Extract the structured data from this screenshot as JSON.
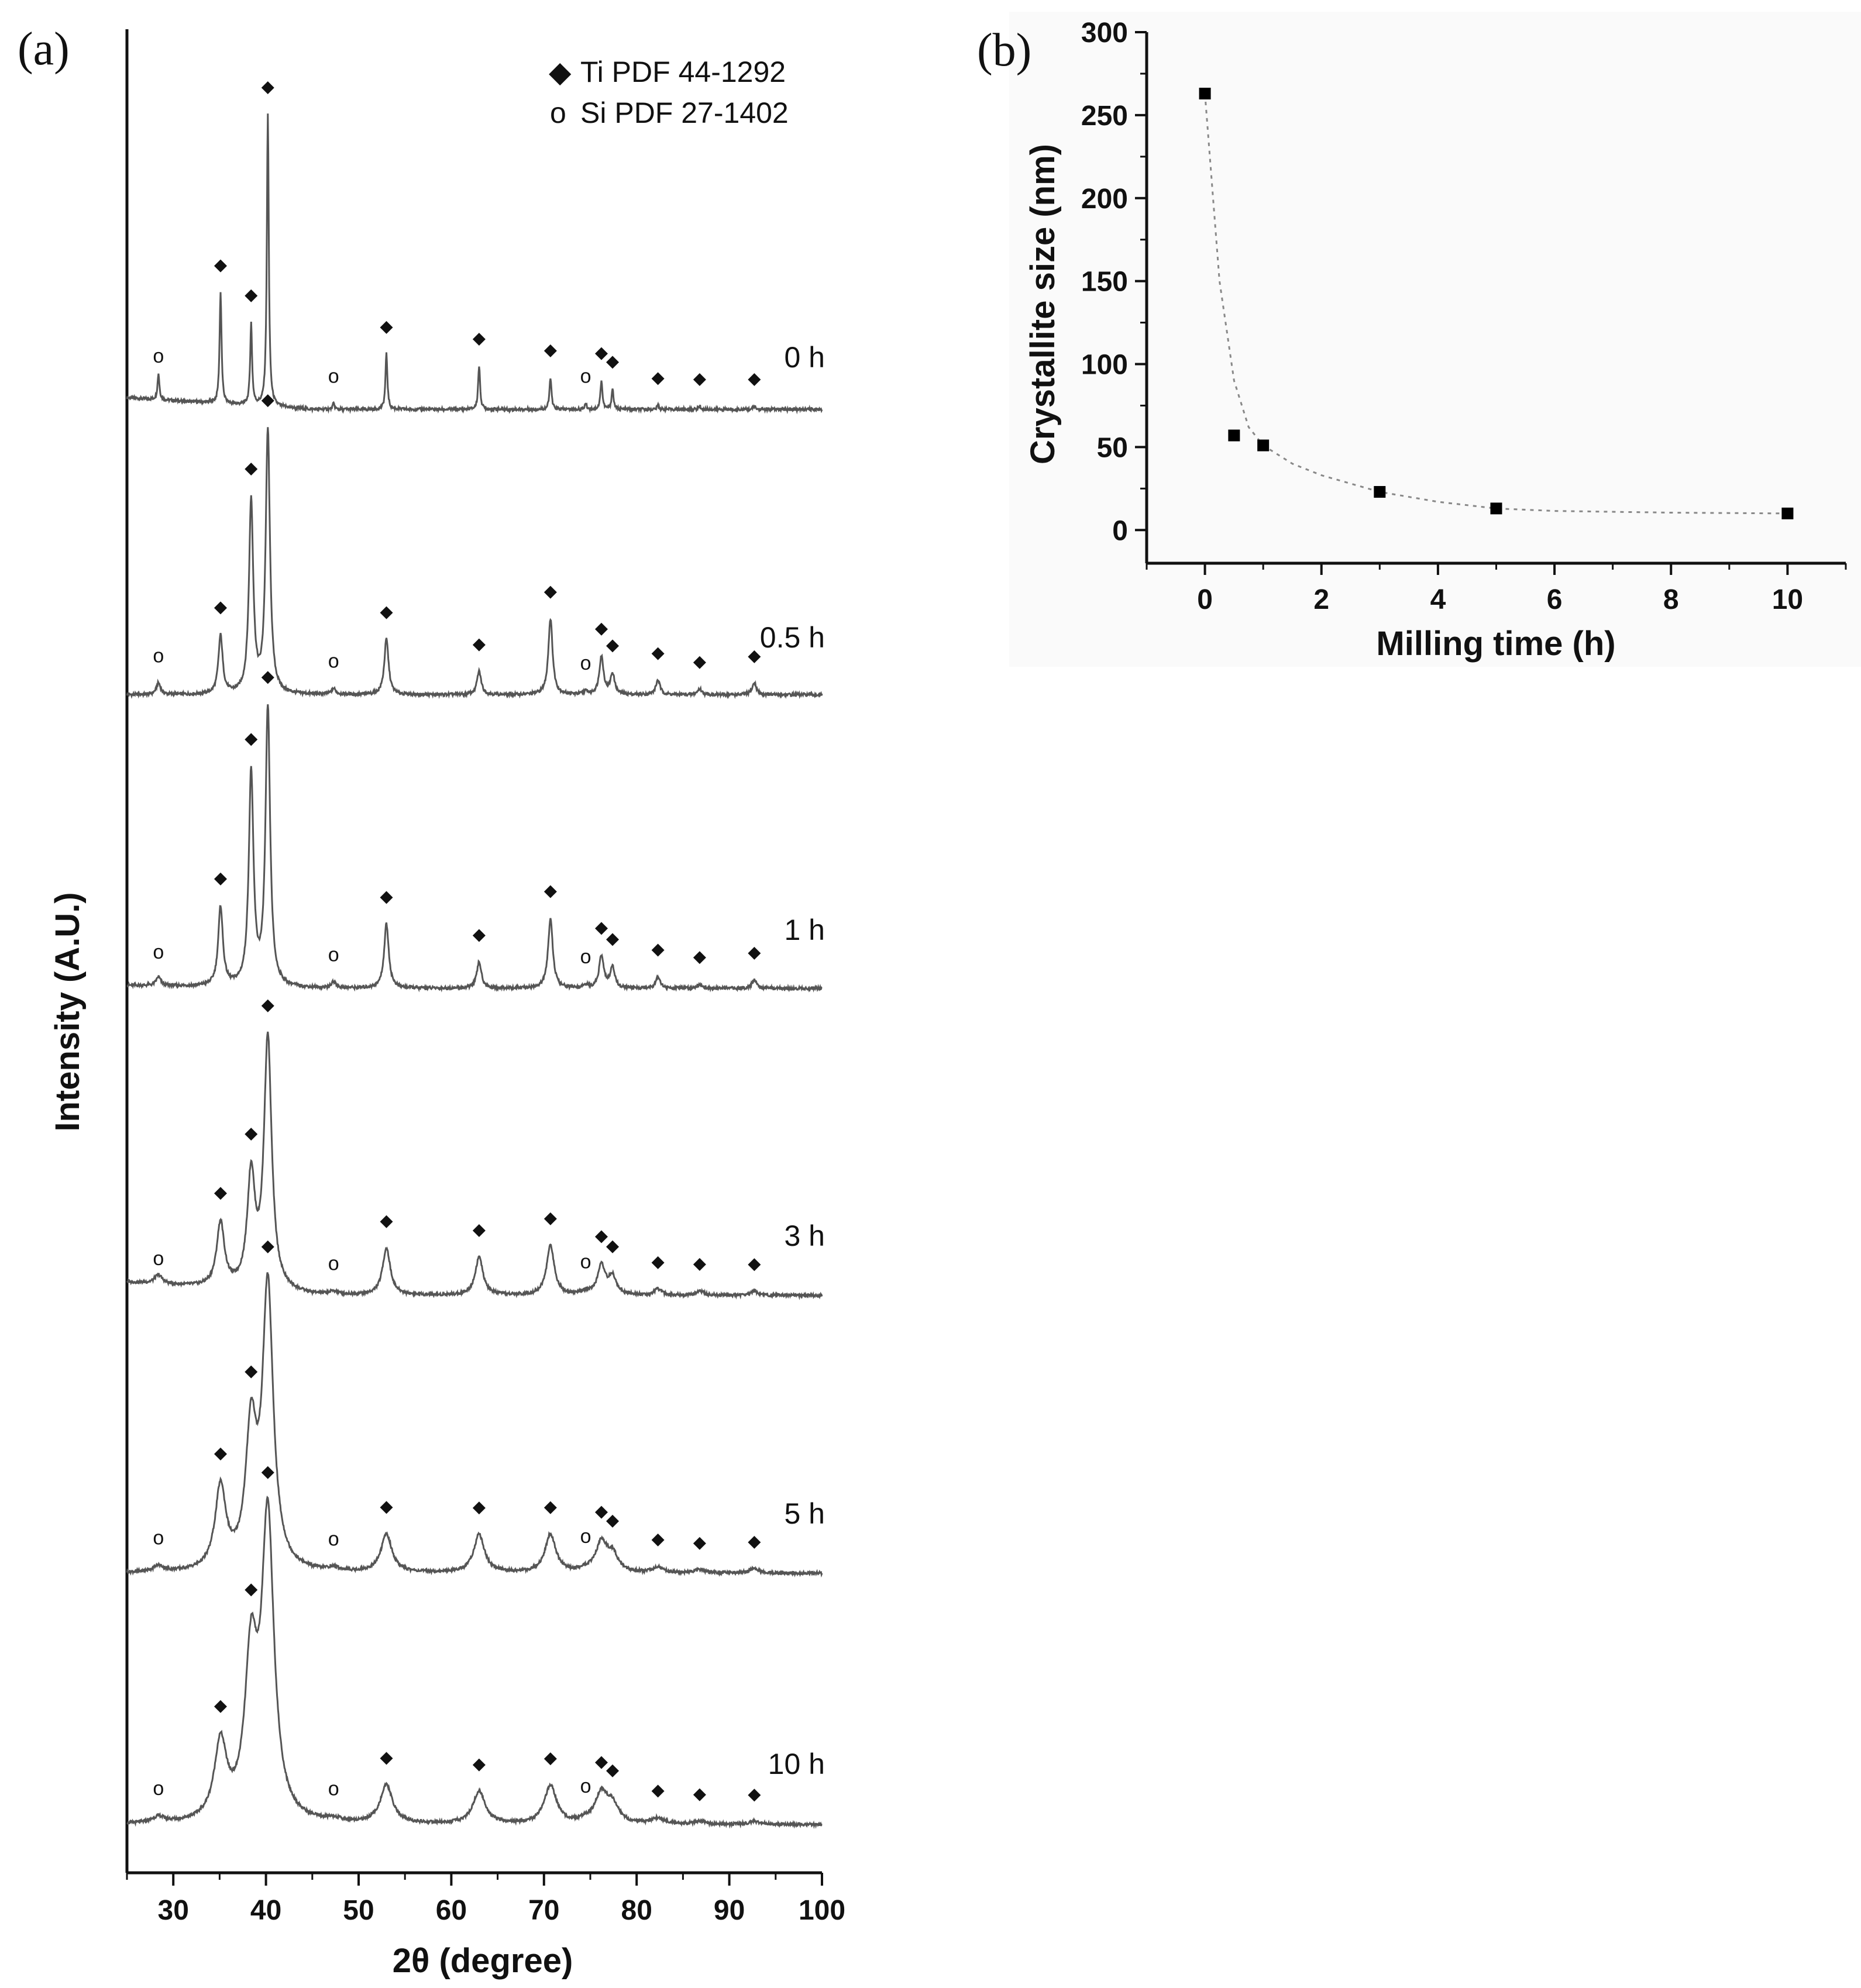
{
  "chart_data": [
    {
      "panel": "(a)",
      "type": "line",
      "title": "",
      "xlabel": "2θ (degree)",
      "ylabel": "Intensity (A.U.)",
      "xlim": [
        25,
        100
      ],
      "xticks": [
        30,
        40,
        50,
        60,
        70,
        80,
        90,
        100
      ],
      "xtick_labels": [
        "30",
        "40",
        "50",
        "60",
        "70",
        "80",
        "90",
        "100"
      ],
      "legend": {
        "placement": "top-right",
        "entries": [
          {
            "symbol": "◆",
            "label": "Ti PDF 44-1292"
          },
          {
            "symbol": "o",
            "label": "Si PDF 27-1402"
          }
        ]
      },
      "ti_peaks_2theta": [
        35.1,
        38.4,
        40.2,
        53.0,
        63.0,
        70.7,
        76.2,
        77.4,
        82.3,
        86.8,
        92.7
      ],
      "si_peaks_2theta": [
        28.4,
        47.3,
        74.5
      ],
      "series": [
        {
          "name": "0 h",
          "label": "0 h",
          "fwhm": 0.25,
          "baseline_tilt": 0.08,
          "peak_heights": [
            0.38,
            0.28,
            1.0,
            0.19,
            0.15,
            0.11,
            0.1,
            0.07,
            0.015,
            0.012,
            0.012
          ],
          "si_heights": [
            0.09,
            0.02,
            0.02
          ]
        },
        {
          "name": "0.5 h",
          "label": "0.5 h",
          "fwhm": 0.55,
          "baseline_tilt": 0.0,
          "peak_heights": [
            0.2,
            0.66,
            0.9,
            0.19,
            0.08,
            0.26,
            0.13,
            0.07,
            0.05,
            0.02,
            0.04
          ],
          "si_heights": [
            0.04,
            0.02,
            0.01
          ]
        },
        {
          "name": "1 h",
          "label": "1 h",
          "fwhm": 0.6,
          "baseline_tilt": 0.02,
          "peak_heights": [
            0.27,
            0.73,
            0.95,
            0.22,
            0.09,
            0.24,
            0.11,
            0.07,
            0.04,
            0.015,
            0.03
          ],
          "si_heights": [
            0.03,
            0.02,
            0.01
          ]
        },
        {
          "name": "3 h",
          "label": "3 h",
          "fwhm": 1.0,
          "baseline_tilt": 0.09,
          "peak_heights": [
            0.22,
            0.38,
            0.86,
            0.16,
            0.13,
            0.17,
            0.1,
            0.06,
            0.02,
            0.015,
            0.015
          ],
          "si_heights": [
            0.03,
            0.01,
            0.01
          ]
        },
        {
          "name": "5 h",
          "label": "5 h",
          "fwhm": 1.4,
          "baseline_tilt": 0.0,
          "peak_heights": [
            0.28,
            0.46,
            0.96,
            0.13,
            0.13,
            0.13,
            0.1,
            0.06,
            0.02,
            0.01,
            0.015
          ],
          "si_heights": [
            0.02,
            0.01,
            0.01
          ]
        },
        {
          "name": "10 h",
          "label": "10 h",
          "fwhm": 1.6,
          "baseline_tilt": 0.0,
          "peak_heights": [
            0.26,
            0.53,
            1.02,
            0.13,
            0.11,
            0.13,
            0.1,
            0.06,
            0.02,
            0.01,
            0.01
          ],
          "si_heights": [
            0.02,
            0.01,
            0.01
          ]
        }
      ]
    },
    {
      "panel": "(b)",
      "type": "scatter",
      "title": "",
      "xlabel": "Milling time (h)",
      "ylabel": "Crystallite size (nm)",
      "xlim": [
        -1,
        11
      ],
      "ylim": [
        -20,
        300
      ],
      "xticks": [
        0,
        2,
        4,
        6,
        8,
        10
      ],
      "yticks": [
        0,
        50,
        100,
        150,
        200,
        250,
        300
      ],
      "xtick_labels": [
        "0",
        "2",
        "4",
        "6",
        "8",
        "10"
      ],
      "ytick_labels": [
        "0",
        "50",
        "100",
        "150",
        "200",
        "250",
        "300"
      ],
      "x": [
        0,
        0.5,
        1,
        3,
        5,
        10
      ],
      "y": [
        263,
        57,
        51,
        23,
        13,
        10
      ],
      "fit_line": {
        "style": "dotted",
        "x": [
          0,
          0.25,
          0.5,
          0.75,
          1,
          1.5,
          2,
          3,
          4,
          5,
          6,
          8,
          10
        ],
        "y": [
          263,
          150,
          90,
          62,
          51,
          40,
          33,
          23,
          17,
          13,
          11.5,
          10.5,
          10
        ]
      }
    }
  ]
}
